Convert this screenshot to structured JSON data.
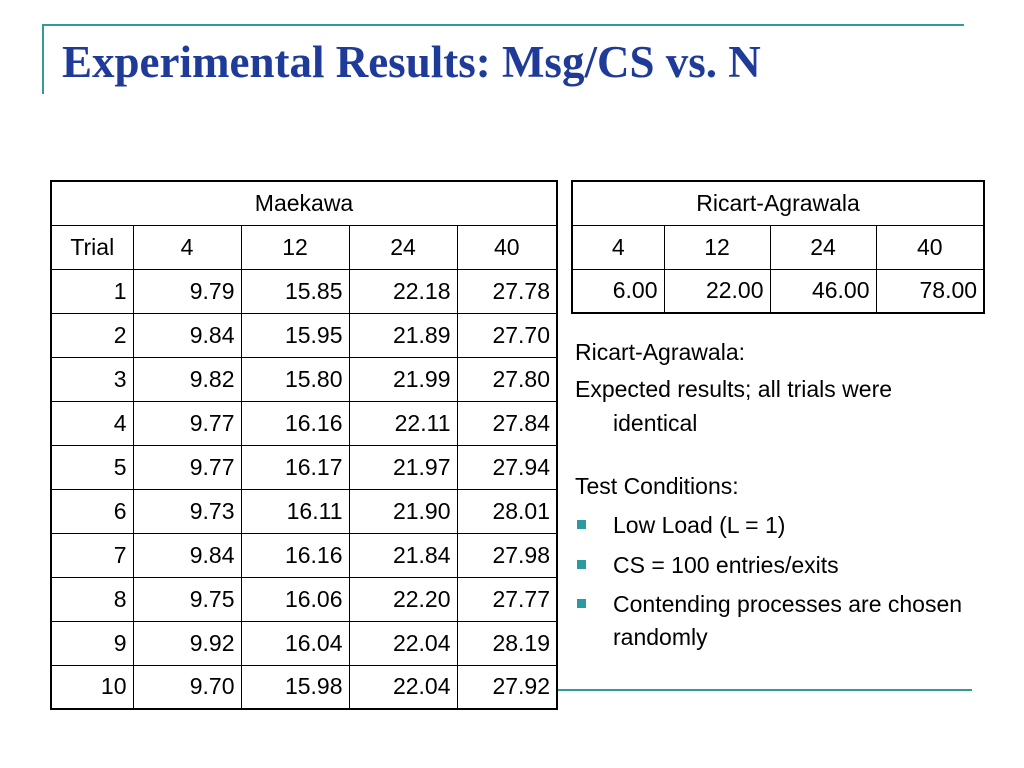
{
  "title": "Experimental Results: Msg/CS vs. N",
  "maekawa": {
    "caption": "Maekawa",
    "headers": [
      "Trial",
      "4",
      "12",
      "24",
      "40"
    ],
    "rows": [
      [
        "1",
        "9.79",
        "15.85",
        "22.18",
        "27.78"
      ],
      [
        "2",
        "9.84",
        "15.95",
        "21.89",
        "27.70"
      ],
      [
        "3",
        "9.82",
        "15.80",
        "21.99",
        "27.80"
      ],
      [
        "4",
        "9.77",
        "16.16",
        "22.11",
        "27.84"
      ],
      [
        "5",
        "9.77",
        "16.17",
        "21.97",
        "27.94"
      ],
      [
        "6",
        "9.73",
        "16.11",
        "21.90",
        "28.01"
      ],
      [
        "7",
        "9.84",
        "16.16",
        "21.84",
        "27.98"
      ],
      [
        "8",
        "9.75",
        "16.06",
        "22.20",
        "27.77"
      ],
      [
        "9",
        "9.92",
        "16.04",
        "22.04",
        "28.19"
      ],
      [
        "10",
        "9.70",
        "15.98",
        "22.04",
        "27.92"
      ]
    ]
  },
  "ricart": {
    "caption": "Ricart-Agrawala",
    "headers": [
      "4",
      "12",
      "24",
      "40"
    ],
    "rows": [
      [
        "6.00",
        "22.00",
        "46.00",
        "78.00"
      ]
    ]
  },
  "notes": {
    "heading": "Ricart-Agrawala:",
    "expected": "Expected results; all trials were identical",
    "conditions_heading": "Test Conditions:",
    "bullets": [
      "Low Load (L = 1)",
      "CS = 100 entries/exits",
      "Contending processes are chosen randomly"
    ]
  },
  "colors": {
    "title": "#1f3b9a",
    "accent": "#339999",
    "bullet": "#2a9aa0"
  }
}
